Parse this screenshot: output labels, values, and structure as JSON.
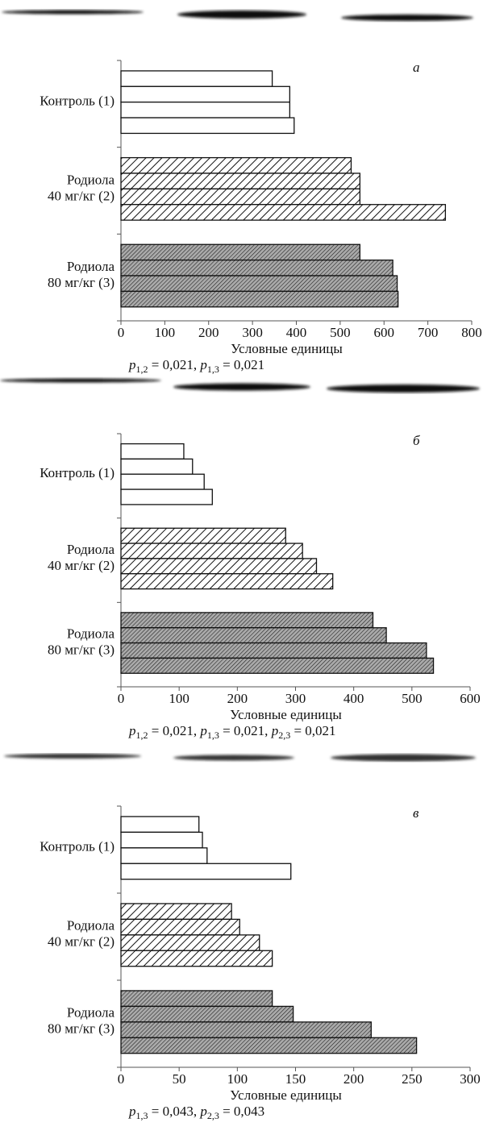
{
  "chart_data": [
    {
      "type": "bar",
      "letter": "а",
      "x_label": "Условные единицы",
      "groups": [
        [
          "Контроль (1)"
        ],
        [
          "Родиола",
          "40 мг/кг (2)"
        ],
        [
          "Родиола",
          "80 мг/кг (3)"
        ]
      ],
      "values": [
        [
          345,
          385,
          385,
          395
        ],
        [
          525,
          545,
          545,
          740
        ],
        [
          545,
          620,
          630,
          632
        ]
      ],
      "fills": [
        "white",
        "hatched",
        "gray-hatched"
      ],
      "xlim": [
        0,
        800
      ],
      "xticks": [
        0,
        100,
        200,
        300,
        400,
        500,
        600,
        700,
        800
      ],
      "stat_symbol": "p",
      "stats": [
        {
          "sub": "1,2",
          "text": " = 0,021,"
        },
        {
          "sub": "1,3",
          "text": " = 0,021"
        }
      ]
    },
    {
      "type": "bar",
      "letter": "б",
      "x_label": "Условные единицы",
      "groups": [
        [
          "Контроль (1)"
        ],
        [
          "Родиола",
          "40 мг/кг (2)"
        ],
        [
          "Родиола",
          "80 мг/кг (3)"
        ]
      ],
      "values": [
        [
          108,
          123,
          143,
          157
        ],
        [
          283,
          312,
          336,
          364
        ],
        [
          433,
          456,
          525,
          537
        ]
      ],
      "fills": [
        "white",
        "hatched",
        "gray-hatched"
      ],
      "xlim": [
        0,
        600
      ],
      "xticks": [
        0,
        100,
        200,
        300,
        400,
        500,
        600
      ],
      "stat_symbol": "p",
      "stats": [
        {
          "sub": "1,2",
          "text": " = 0,021,"
        },
        {
          "sub": "1,3",
          "text": " = 0,021,"
        },
        {
          "sub": "2,3",
          "text": " = 0,021"
        }
      ]
    },
    {
      "type": "bar",
      "letter": "в",
      "x_label": "Условные единицы",
      "groups": [
        [
          "Контроль (1)"
        ],
        [
          "Родиола",
          "40 мг/кг (2)"
        ],
        [
          "Родиола",
          "80 мг/кг (3)"
        ]
      ],
      "values": [
        [
          67,
          70,
          74,
          146
        ],
        [
          95,
          102,
          119,
          130
        ],
        [
          130,
          148,
          215,
          254
        ]
      ],
      "fills": [
        "white",
        "hatched",
        "gray-hatched"
      ],
      "xlim": [
        0,
        300
      ],
      "xticks": [
        0,
        50,
        100,
        150,
        200,
        250,
        300
      ],
      "stat_symbol": "p",
      "stats": [
        {
          "sub": "1,3",
          "text": " = 0,043,"
        },
        {
          "sub": "2,3",
          "text": " = 0,043"
        }
      ]
    }
  ]
}
